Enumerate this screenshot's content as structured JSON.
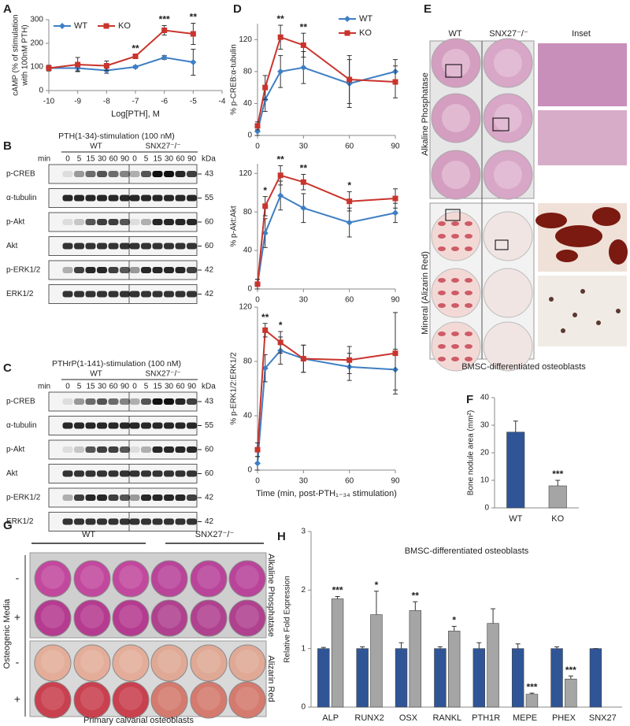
{
  "panel_labels": [
    "A",
    "B",
    "C",
    "D",
    "E",
    "F",
    "G",
    "H"
  ],
  "chart_data": [
    {
      "type": "line",
      "x": [
        -10,
        -9,
        -8,
        -7,
        -6,
        -5
      ],
      "xlim": [
        -10,
        -4
      ],
      "xticks": [
        -10,
        -9,
        -8,
        -7,
        -6,
        -5,
        -4
      ],
      "ylim": [
        0,
        300
      ],
      "yticks": [
        0,
        100,
        200,
        300
      ],
      "xlabel": "Log[PTH], M",
      "ylabel": [
        "cAMP (% of stimulation",
        "with 100nM PTH)"
      ],
      "legend": "upper left",
      "series": [
        {
          "name": "WT",
          "color": "#3f7fc4",
          "marker": "diamond",
          "values": [
            95,
            95,
            85,
            100,
            140,
            120
          ],
          "errors": [
            10,
            12,
            12,
            5,
            8,
            55
          ],
          "annotations": [
            null,
            null,
            null,
            null,
            null,
            null
          ]
        },
        {
          "name": "KO",
          "color": "#c9342c",
          "marker": "square",
          "values": [
            95,
            110,
            105,
            145,
            255,
            240
          ],
          "errors": [
            12,
            30,
            20,
            8,
            20,
            45
          ],
          "annotations": [
            null,
            null,
            null,
            "**",
            "***",
            "**"
          ]
        }
      ]
    },
    {
      "type": "line",
      "x": [
        0,
        5,
        15,
        30,
        60,
        90
      ],
      "xlim": [
        0,
        90
      ],
      "xticks": [
        0,
        30,
        60,
        90
      ],
      "ylim": [
        0,
        140
      ],
      "yticks": [
        0,
        40,
        80,
        120
      ],
      "ylabel": "% p-CREB:α-tubulin",
      "legend": "upper right",
      "series": [
        {
          "name": "WT",
          "color": "#3f7fc4",
          "marker": "diamond",
          "values": [
            5,
            45,
            80,
            85,
            65,
            80
          ],
          "errors": [
            5,
            15,
            20,
            20,
            30,
            15
          ],
          "annotations": [
            null,
            null,
            null,
            null,
            null,
            null
          ]
        },
        {
          "name": "KO",
          "color": "#c9342c",
          "marker": "square",
          "values": [
            12,
            60,
            123,
            113,
            70,
            67
          ],
          "errors": [
            5,
            15,
            15,
            15,
            30,
            20
          ],
          "annotations": [
            null,
            null,
            "**",
            "**",
            null,
            null
          ]
        }
      ]
    },
    {
      "type": "line",
      "x": [
        0,
        5,
        15,
        30,
        60,
        90
      ],
      "xlim": [
        0,
        90
      ],
      "xticks": [
        0,
        30,
        60,
        90
      ],
      "ylim": [
        0,
        130
      ],
      "yticks": [
        0,
        40,
        80,
        120
      ],
      "ylabel": "% p-Akt:Akt",
      "series": [
        {
          "color": "#3f7fc4",
          "marker": "diamond",
          "values": [
            5,
            58,
            97,
            84,
            69,
            79
          ],
          "errors": [
            5,
            15,
            15,
            15,
            15,
            10
          ],
          "annotations": [
            null,
            null,
            null,
            null,
            null,
            null
          ]
        },
        {
          "color": "#c9342c",
          "marker": "square",
          "values": [
            5,
            86,
            118,
            111,
            91,
            94
          ],
          "errors": [
            5,
            10,
            10,
            8,
            10,
            10
          ],
          "annotations": [
            null,
            "*",
            "**",
            "**",
            "*",
            null
          ]
        }
      ]
    },
    {
      "type": "line",
      "x": [
        0,
        5,
        15,
        30,
        60,
        90
      ],
      "xlim": [
        0,
        90
      ],
      "xticks": [
        0,
        30,
        60,
        90
      ],
      "ylim": [
        0,
        120
      ],
      "yticks": [
        0,
        40,
        80,
        120
      ],
      "ylabel": "% p-ERK1/2:ERK1/2",
      "xlabel": "Time (min, post-PTH₁₋₃₄ stimulation)",
      "series": [
        {
          "color": "#3f7fc4",
          "marker": "diamond",
          "values": [
            5,
            75,
            88,
            82,
            76,
            74
          ],
          "errors": [
            5,
            10,
            10,
            10,
            10,
            15
          ],
          "annotations": [
            null,
            null,
            null,
            null,
            null,
            null
          ]
        },
        {
          "color": "#c9342c",
          "marker": "square",
          "values": [
            15,
            103,
            94,
            82,
            81,
            86
          ],
          "errors": [
            5,
            5,
            8,
            10,
            10,
            30
          ],
          "annotations": [
            null,
            "**",
            "*",
            null,
            null,
            null
          ]
        }
      ]
    },
    {
      "type": "bar",
      "categories": [
        "WT",
        "KO"
      ],
      "values": [
        27.5,
        8
      ],
      "errors": [
        4,
        2
      ],
      "colors": [
        "#2f5597",
        "#a5a5a5"
      ],
      "annotations": [
        null,
        "***"
      ],
      "ylim": [
        0,
        40
      ],
      "yticks": [
        0,
        10,
        20,
        30,
        40
      ],
      "ylabel": "Bone nodule area (mm²)"
    },
    {
      "type": "bar",
      "title": "BMSC-differentiated osteoblasts",
      "categories": [
        "ALP",
        "RUNX2",
        "OSX",
        "RANKL",
        "PTH1R",
        "MEPE",
        "PHEX",
        "SNX27"
      ],
      "ylim": [
        0,
        3
      ],
      "yticks": [
        0,
        1,
        2,
        3
      ],
      "ylabel": "Relative Fold Expression",
      "series": [
        {
          "color": "#2f5597",
          "values": [
            1,
            1,
            1,
            1,
            1,
            1,
            1,
            1
          ],
          "errors": [
            0.02,
            0.03,
            0.1,
            0.03,
            0.1,
            0.08,
            0.03,
            0
          ],
          "annotations": [
            null,
            null,
            null,
            null,
            null,
            null,
            null,
            null
          ]
        },
        {
          "color": "#a5a5a5",
          "values": [
            1.85,
            1.58,
            1.65,
            1.3,
            1.43,
            0.22,
            0.48,
            null
          ],
          "errors": [
            0.04,
            0.4,
            0.15,
            0.08,
            0.25,
            0.02,
            0.05,
            null
          ],
          "annotations": [
            "***",
            "*",
            "**",
            "*",
            null,
            "***",
            "***",
            null
          ]
        }
      ]
    }
  ],
  "blots": [
    {
      "title": "PTH(1-34)-stimulation (100 nM)",
      "min_label": "min",
      "groups": [
        "WT",
        "SNX27⁻/⁻"
      ],
      "times": [
        "0",
        "5",
        "15",
        "30",
        "60",
        "90",
        "0",
        "5",
        "15",
        "30",
        "60",
        "90"
      ],
      "kda_label": "kDa",
      "rows": [
        {
          "name": "p-CREB",
          "kda": "43"
        },
        {
          "name": "α-tubulin",
          "kda": "55"
        },
        {
          "name": "p-Akt",
          "kda": "60"
        },
        {
          "name": "Akt",
          "kda": "60"
        },
        {
          "name": "p-ERK1/2",
          "kda": "42"
        },
        {
          "name": "ERK1/2",
          "kda": "42"
        }
      ]
    },
    {
      "title": "PTHrP(1-141)-stimulation (100 nM)",
      "min_label": "min",
      "groups": [
        "WT",
        "SNX27⁻/⁻"
      ],
      "times": [
        "0",
        "5",
        "15",
        "30",
        "60",
        "90",
        "0",
        "5",
        "15",
        "30",
        "60",
        "90"
      ],
      "kda_label": "kDa",
      "rows": [
        {
          "name": "p-CREB",
          "kda": "43"
        },
        {
          "name": "α-tubulin",
          "kda": "55"
        },
        {
          "name": "p-Akt",
          "kda": "60"
        },
        {
          "name": "Akt",
          "kda": "60"
        },
        {
          "name": "p-ERK1/2",
          "kda": "42"
        },
        {
          "name": "ERK1/2",
          "kda": "42"
        }
      ]
    }
  ],
  "panel_e": {
    "columns": [
      "WT",
      "SNX27⁻/⁻",
      "Inset"
    ],
    "rows": [
      "Alkaline Phosphatase",
      "Mineral (Alizarin Red)"
    ],
    "caption": "BMSC-differentiated osteoblasts"
  },
  "panel_g": {
    "groups": [
      "WT",
      "SNX27⁻/⁻"
    ],
    "media_label": "Osteogenic Media",
    "media_signs": [
      "-",
      "+",
      "-",
      "+"
    ],
    "stains": [
      "Alkaline Phosphatase",
      "Alizarin Red"
    ],
    "caption": "Primary calvarial osteoblasts"
  }
}
